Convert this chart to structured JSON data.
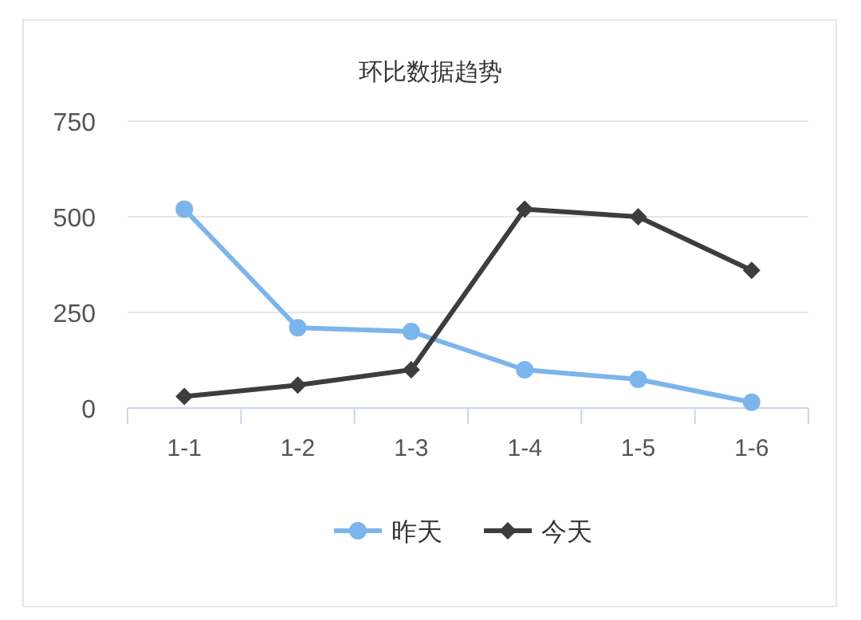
{
  "chart_data": {
    "type": "line",
    "title": "环比数据趋势",
    "categories": [
      "1-1",
      "1-2",
      "1-3",
      "1-4",
      "1-5",
      "1-6"
    ],
    "series": [
      {
        "name": "昨天",
        "color": "#7cb5ec",
        "marker": "circle",
        "values": [
          520,
          210,
          200,
          100,
          75,
          15
        ]
      },
      {
        "name": "今天",
        "color": "#3d3d3d",
        "marker": "diamond",
        "values": [
          30,
          60,
          100,
          520,
          500,
          360
        ]
      }
    ],
    "ylim": [
      0,
      750
    ],
    "yticks": [
      0,
      250,
      500,
      750
    ],
    "grid": "y",
    "legend": "bottom"
  }
}
